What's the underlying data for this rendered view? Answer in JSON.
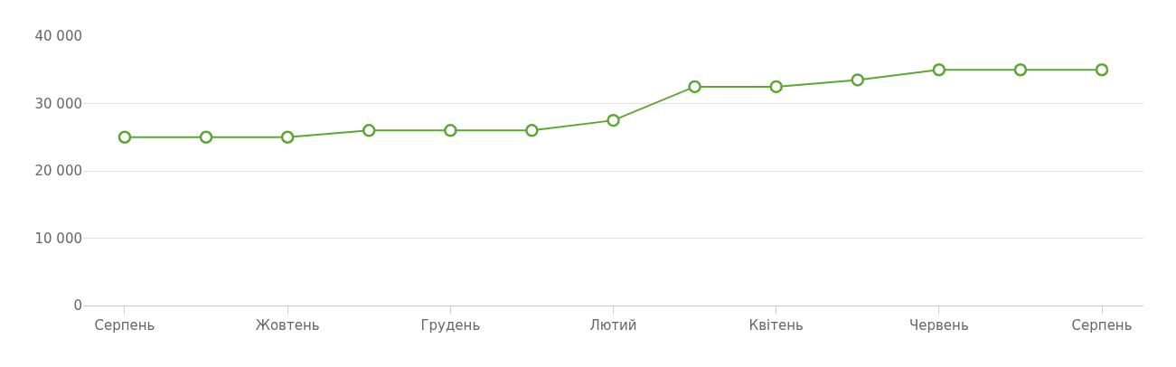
{
  "chart_data": {
    "type": "line",
    "categories": [
      "Серпень",
      null,
      "Жовтень",
      null,
      "Грудень",
      null,
      "Лютий",
      null,
      "Квітень",
      null,
      "Червень",
      null,
      "Серпень"
    ],
    "series": [
      {
        "color": "#5aa832",
        "values": [
          25000,
          25000,
          25000,
          26000,
          26000,
          26000,
          27500,
          32500,
          32500,
          33500,
          35000,
          35000,
          35000
        ]
      }
    ],
    "ylim": [
      0,
      40000
    ],
    "yticks": [
      0,
      {
        "value": 10000,
        "label": "10 000"
      },
      {
        "value": 20000,
        "label": "20 000"
      },
      {
        "value": 30000,
        "label": "30 000"
      },
      {
        "value": 40000,
        "label": "40 000"
      }
    ],
    "grid": "y",
    "legend": false,
    "marker": "circle",
    "line_style": "solid"
  }
}
